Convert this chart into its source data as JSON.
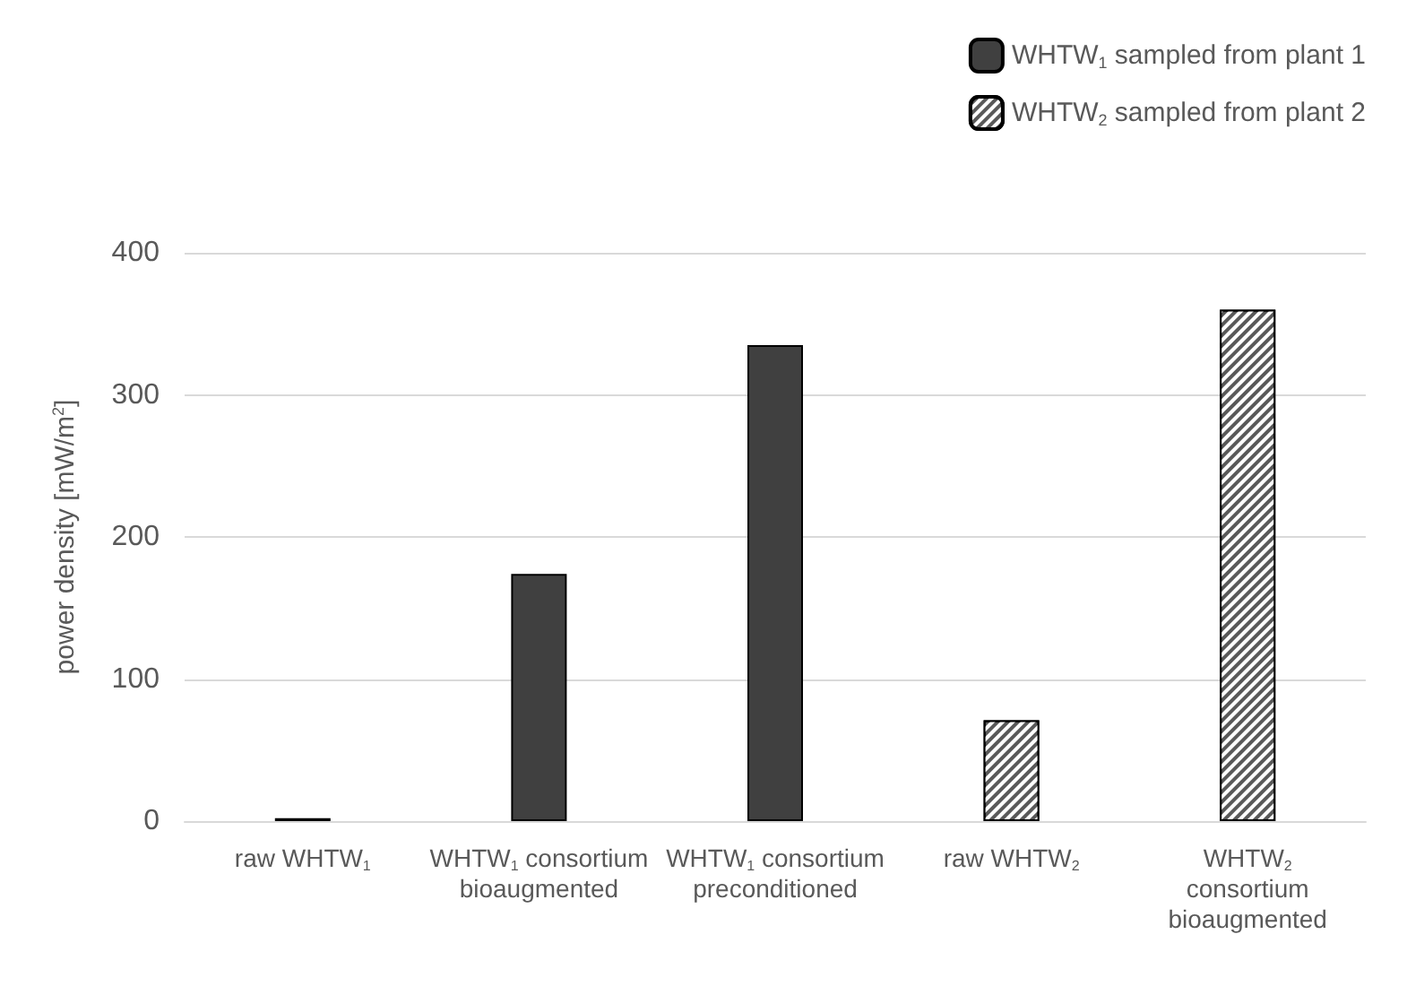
{
  "chart_data": {
    "type": "bar",
    "ylabel": "power density [mW/m$^{2}$]",
    "categories": [
      "raw WHTW$_{1}$",
      "WHTW$_{1}$ consortium\nbioaugmented",
      "WHTW$_{1}$ consortium\npreconditioned",
      "raw WHTW$_{2}$",
      "WHTW$_{2}$\nconsortium\nbioaugmented"
    ],
    "series": [
      {
        "name": "WHTW$_{1}$ sampled from plant 1",
        "color": "#404040",
        "values": [
          2,
          174,
          335,
          null,
          null
        ]
      },
      {
        "name": "WHTW$_{2}$ sampled from plant 2",
        "color": "#595959",
        "values": [
          null,
          null,
          null,
          71,
          360
        ]
      }
    ],
    "ylim": [
      0,
      400
    ],
    "yticks": [
      0,
      100,
      200,
      300,
      400
    ],
    "grid": "y",
    "legend": "top right"
  }
}
